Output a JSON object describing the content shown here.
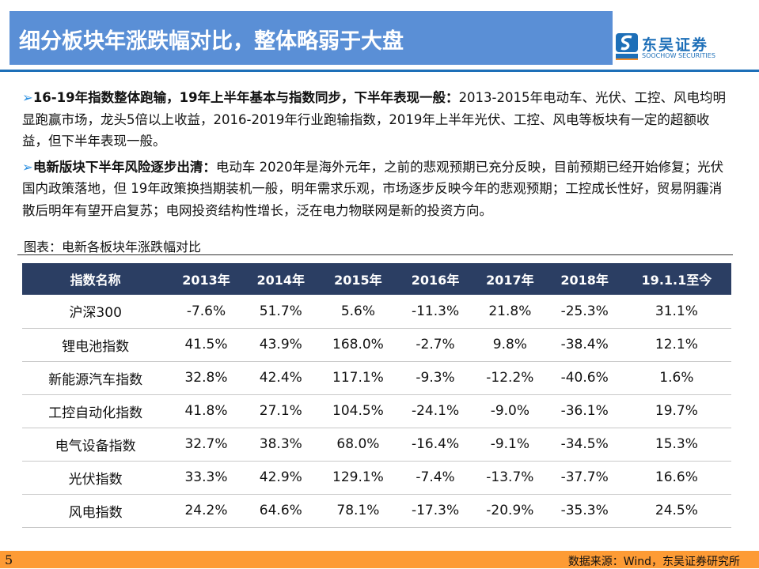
{
  "title": "细分板块年涨跌幅对比，整体略弱于大盘",
  "logo": {
    "cn": "东吴证券",
    "en": "SOOCHOW SECURITIES",
    "mark": "SCS"
  },
  "paragraphs": [
    {
      "bold": "16-19年指数整体跑输，19年上半年基本与指数同步，下半年表现一般：",
      "text": "2013-2015年电动车、光伏、工控、风电均明显跑赢市场，龙头5倍以上收益，2016-2019年行业跑输指数，2019年上半年光伏、工控、风电等板块有一定的超额收益，但下半年表现一般。"
    },
    {
      "bold": "电新版块下半年风险逐步出清：",
      "text": "电动车 2020年是海外元年，之前的悲观预期已充分反映，目前预期已经开始修复；光伏国内政策落地，但 19年政策换挡期装机一般，明年需求乐观，市场逐步反映今年的悲观预期；工控成长性好，贸易阴霾消散后明年有望开启复苏；电网投资结构性增长，泛在电力物联网是新的投资方向。"
    }
  ],
  "caption": "图表：电新各板块年涨跌幅对比",
  "table": {
    "headers": [
      "指数名称",
      "2013年",
      "2014年",
      "2015年",
      "2016年",
      "2017年",
      "2018年",
      "19.1.1至今"
    ],
    "rows": [
      [
        "沪深300",
        "-7.6%",
        "51.7%",
        "5.6%",
        "-11.3%",
        "21.8%",
        "-25.3%",
        "31.1%"
      ],
      [
        "锂电池指数",
        "41.5%",
        "43.9%",
        "168.0%",
        "-2.7%",
        "9.8%",
        "-38.4%",
        "12.1%"
      ],
      [
        "新能源汽车指数",
        "32.8%",
        "42.4%",
        "117.1%",
        "-9.3%",
        "-12.2%",
        "-40.6%",
        "1.6%"
      ],
      [
        "工控自动化指数",
        "41.8%",
        "27.1%",
        "104.5%",
        "-24.1%",
        "-9.0%",
        "-36.1%",
        "19.7%"
      ],
      [
        "电气设备指数",
        "32.7%",
        "38.3%",
        "68.0%",
        "-16.4%",
        "-9.1%",
        "-34.5%",
        "15.3%"
      ],
      [
        "光伏指数",
        "33.3%",
        "42.9%",
        "129.1%",
        "-7.4%",
        "-13.7%",
        "-37.7%",
        "16.6%"
      ],
      [
        "风电指数",
        "24.2%",
        "64.6%",
        "78.1%",
        "-17.3%",
        "-20.9%",
        "-35.3%",
        "24.5%"
      ]
    ]
  },
  "footer": {
    "page": "5",
    "source": "数据来源：Wind，东吴证券研究所"
  }
}
